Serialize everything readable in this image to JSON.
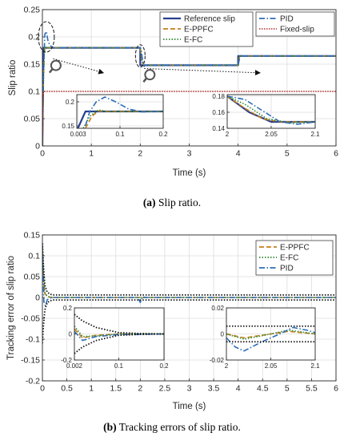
{
  "captions": {
    "a_label": "(a)",
    "a_text": "Slip ratio.",
    "b_label": "(b)",
    "b_text": "Tracking errors of slip ratio."
  },
  "chart_data": [
    {
      "id": "slip",
      "type": "line",
      "xlabel": "Time (s)",
      "ylabel": "Slip ratio",
      "xlim": [
        0,
        6
      ],
      "ylim": [
        0,
        0.25
      ],
      "xticks": [
        "0",
        "1",
        "2",
        "3",
        "4",
        "5",
        "6"
      ],
      "yticks": [
        "0",
        "0.05",
        "0.1",
        "0.15",
        "0.2",
        "0.25"
      ],
      "grid": true,
      "legend": [
        "top-center",
        "top-right"
      ],
      "colors": {
        "Reference slip": "#2a3f8f",
        "E-PPFC": "#c77f1b",
        "E-FC": "#2f8a2f",
        "PID": "#2e6db8",
        "Fixed-slip": "#b02a2a"
      },
      "series": [
        {
          "name": "Reference slip",
          "x": [
            0,
            0.02,
            2.0,
            2.0,
            4.0,
            4.0,
            6.0
          ],
          "y": [
            0,
            0.18,
            0.18,
            0.148,
            0.148,
            0.165,
            0.165
          ]
        },
        {
          "name": "E-PPFC",
          "x": [
            0,
            0.02,
            0.04,
            0.06,
            0.08,
            2.0,
            2.02,
            2.04,
            2.06,
            2.1,
            4.0,
            4.03,
            6.0
          ],
          "y": [
            0,
            0.12,
            0.175,
            0.181,
            0.18,
            0.18,
            0.165,
            0.155,
            0.149,
            0.148,
            0.148,
            0.165,
            0.165
          ]
        },
        {
          "name": "E-FC",
          "x": [
            0,
            0.02,
            0.04,
            0.06,
            0.08,
            2.0,
            2.02,
            2.04,
            2.06,
            2.1,
            4.0,
            4.03,
            6.0
          ],
          "y": [
            0,
            0.11,
            0.172,
            0.183,
            0.18,
            0.18,
            0.168,
            0.156,
            0.148,
            0.148,
            0.148,
            0.165,
            0.165
          ]
        },
        {
          "name": "PID",
          "x": [
            0,
            0.02,
            0.05,
            0.08,
            0.12,
            0.2,
            2.0,
            2.02,
            2.05,
            2.08,
            2.1,
            4.0,
            4.04,
            6.0
          ],
          "y": [
            0,
            0.13,
            0.205,
            0.21,
            0.19,
            0.18,
            0.18,
            0.175,
            0.155,
            0.146,
            0.148,
            0.148,
            0.165,
            0.165
          ]
        },
        {
          "name": "Fixed-slip",
          "x": [
            0,
            0.02,
            6.0
          ],
          "y": [
            0,
            0.1,
            0.1
          ]
        }
      ],
      "insets": [
        {
          "xlim": [
            0,
            0.2
          ],
          "ylim": [
            0.145,
            0.215
          ],
          "xticks": [
            "0.003",
            "0.1",
            "0.2"
          ],
          "yticks": [
            "0.15",
            "0.2"
          ],
          "series": [
            {
              "name": "Reference slip",
              "x": [
                0,
                0.02,
                0.2
              ],
              "y": [
                0.14,
                0.18,
                0.18
              ]
            },
            {
              "name": "E-PPFC",
              "x": [
                0.02,
                0.035,
                0.05,
                0.07,
                0.2
              ],
              "y": [
                0.145,
                0.17,
                0.181,
                0.18,
                0.18
              ]
            },
            {
              "name": "E-FC",
              "x": [
                0.015,
                0.03,
                0.05,
                0.07,
                0.2
              ],
              "y": [
                0.145,
                0.17,
                0.183,
                0.18,
                0.18
              ]
            },
            {
              "name": "PID",
              "x": [
                0.02,
                0.03,
                0.045,
                0.065,
                0.09,
                0.12,
                0.15,
                0.2
              ],
              "y": [
                0.15,
                0.18,
                0.2,
                0.21,
                0.2,
                0.185,
                0.179,
                0.18
              ]
            }
          ]
        },
        {
          "xlim": [
            2.0,
            2.1
          ],
          "ylim": [
            0.14,
            0.182
          ],
          "xticks": [
            "2",
            "2.05",
            "2.1"
          ],
          "yticks": [
            "0.14",
            "0.16",
            "0.18"
          ],
          "series": [
            {
              "name": "Reference slip",
              "x": [
                2.0,
                2.025,
                2.05,
                2.1
              ],
              "y": [
                0.18,
                0.16,
                0.148,
                0.148
              ]
            },
            {
              "name": "E-PPFC",
              "x": [
                2.0,
                2.02,
                2.04,
                2.06,
                2.1
              ],
              "y": [
                0.18,
                0.165,
                0.152,
                0.148,
                0.148
              ]
            },
            {
              "name": "E-FC",
              "x": [
                2.0,
                2.02,
                2.045,
                2.07,
                2.1
              ],
              "y": [
                0.18,
                0.17,
                0.152,
                0.147,
                0.148
              ]
            },
            {
              "name": "PID",
              "x": [
                2.0,
                2.02,
                2.04,
                2.06,
                2.08,
                2.1
              ],
              "y": [
                0.18,
                0.176,
                0.162,
                0.148,
                0.145,
                0.148
              ]
            }
          ]
        }
      ]
    },
    {
      "id": "error",
      "type": "line",
      "xlabel": "Time (s)",
      "ylabel": "Tracking error of slip ratio",
      "xlim": [
        0,
        6
      ],
      "ylim": [
        -0.2,
        0.15
      ],
      "xticks": [
        "0",
        "0.5",
        "1",
        "1.5",
        "2",
        "2.5",
        "3",
        "3.5",
        "4",
        "4.5",
        "5",
        "5.5",
        "6"
      ],
      "yticks": [
        "-0.2",
        "-0.15",
        "-0.1",
        "-0.05",
        "0",
        "0.05",
        "0.1",
        "0.15"
      ],
      "grid": true,
      "legend": [
        "top-right"
      ],
      "colors": {
        "E-PPFC": "#c77f1b",
        "E-FC": "#2f8a2f",
        "PID": "#2e6db8",
        "bound": "#111111"
      },
      "series": [
        {
          "name": "E-PPFC",
          "x": [
            0,
            0.02,
            0.05,
            0.1,
            0.2,
            6.0
          ],
          "y": [
            0.1,
            0.04,
            0.01,
            0.002,
            0.0,
            0.0
          ]
        },
        {
          "name": "E-FC",
          "x": [
            0,
            0.02,
            0.05,
            0.1,
            0.2,
            6.0
          ],
          "y": [
            0.12,
            0.05,
            0.012,
            0.003,
            0.0,
            0.0
          ]
        },
        {
          "name": "PID",
          "x": [
            0,
            0.03,
            0.06,
            0.1,
            0.2,
            1.95,
            2.0,
            2.05,
            2.1,
            6.0
          ],
          "y": [
            0.13,
            -0.01,
            -0.02,
            -0.005,
            0.0,
            0.0,
            -0.012,
            0.002,
            0.0,
            0.0
          ]
        },
        {
          "name": "bound",
          "x": [
            0,
            0.02,
            0.05,
            0.1,
            0.2,
            6.0
          ],
          "y": [
            0.13,
            0.08,
            0.03,
            0.012,
            0.006,
            0.006
          ]
        },
        {
          "name": "bound",
          "x": [
            0,
            0.02,
            0.05,
            0.1,
            0.2,
            6.0
          ],
          "y": [
            -0.11,
            -0.07,
            -0.03,
            -0.012,
            -0.006,
            -0.006
          ]
        }
      ],
      "insets": [
        {
          "xlim": [
            0.002,
            0.2
          ],
          "ylim": [
            -0.2,
            0.2
          ],
          "xticks": [
            "0.002",
            "0.1",
            "0.2"
          ],
          "yticks": [
            "-0.2",
            "0",
            "0.2"
          ],
          "series": [
            {
              "name": "E-PPFC",
              "x": [
                0.002,
                0.02,
                0.05,
                0.1,
                0.2
              ],
              "y": [
                0.04,
                -0.03,
                -0.01,
                0.0,
                0.0
              ]
            },
            {
              "name": "E-FC",
              "x": [
                0.002,
                0.02,
                0.05,
                0.1,
                0.2
              ],
              "y": [
                0.06,
                -0.02,
                -0.015,
                0.0,
                0.0
              ]
            },
            {
              "name": "PID",
              "x": [
                0.002,
                0.02,
                0.05,
                0.1,
                0.2
              ],
              "y": [
                0.02,
                -0.05,
                -0.02,
                -0.005,
                0.0
              ]
            },
            {
              "name": "bound",
              "x": [
                0.002,
                0.02,
                0.05,
                0.1,
                0.15,
                0.2
              ],
              "y": [
                0.15,
                0.1,
                0.05,
                0.01,
                0.003,
                0.0
              ]
            },
            {
              "name": "bound",
              "x": [
                0.002,
                0.02,
                0.05,
                0.1,
                0.15,
                0.2
              ],
              "y": [
                -0.15,
                -0.1,
                -0.05,
                -0.01,
                -0.003,
                0.0
              ]
            }
          ]
        },
        {
          "xlim": [
            2.0,
            2.1
          ],
          "ylim": [
            -0.02,
            0.02
          ],
          "xticks": [
            "2",
            "2.05",
            "2.1"
          ],
          "yticks": [
            "-0.02",
            "0",
            "0.02"
          ],
          "series": [
            {
              "name": "E-PPFC",
              "x": [
                2.0,
                2.02,
                2.05,
                2.07,
                2.1
              ],
              "y": [
                0.0,
                -0.003,
                0.0,
                0.002,
                0.0
              ]
            },
            {
              "name": "E-FC",
              "x": [
                2.0,
                2.02,
                2.05,
                2.07,
                2.1
              ],
              "y": [
                0.0,
                -0.004,
                0.0,
                0.003,
                0.0
              ]
            },
            {
              "name": "PID",
              "x": [
                2.0,
                2.01,
                2.02,
                2.04,
                2.06,
                2.075,
                2.09,
                2.1
              ],
              "y": [
                -0.003,
                -0.01,
                -0.013,
                -0.006,
                0.0,
                0.005,
                0.003,
                0.001
              ]
            },
            {
              "name": "bound",
              "x": [
                2.0,
                2.1
              ],
              "y": [
                0.006,
                0.006
              ]
            },
            {
              "name": "bound",
              "x": [
                2.0,
                2.1
              ],
              "y": [
                -0.006,
                -0.006
              ]
            }
          ]
        }
      ]
    }
  ]
}
